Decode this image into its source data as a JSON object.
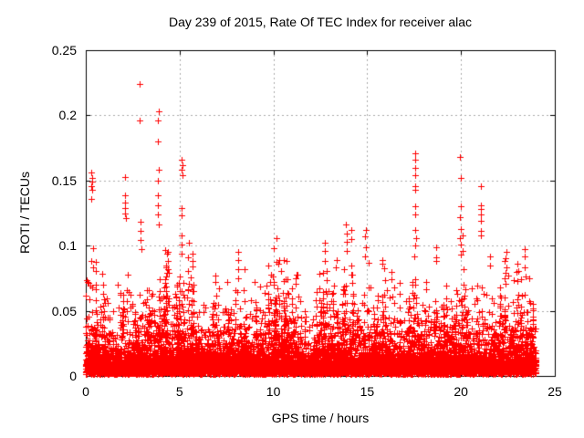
{
  "chart_data": {
    "type": "scatter",
    "title": "Day 239 of 2015, Rate Of TEC Index for receiver alac",
    "xlabel": "GPS time / hours",
    "ylabel": "ROTI / TECUs",
    "xlim": [
      0,
      25
    ],
    "ylim": [
      0,
      0.25
    ],
    "xticks": {
      "values": [
        0,
        5,
        10,
        15,
        20,
        25
      ],
      "labels": [
        "0",
        "5",
        "10",
        "15",
        "20",
        "25"
      ]
    },
    "yticks": {
      "values": [
        0,
        0.05,
        0.1,
        0.15,
        0.2,
        0.25
      ],
      "labels": [
        "0",
        "0.05",
        "0.1",
        "0.15",
        "0.2",
        "0.25"
      ]
    },
    "grid": {
      "show": true,
      "color": "#aaaaaa",
      "dash": [
        2,
        3
      ],
      "x_at": [
        5,
        10,
        15,
        20
      ],
      "y_at": [
        0.05,
        0.1,
        0.15,
        0.2
      ]
    },
    "axis_color": "#000000",
    "text_color": "#000000",
    "marker": {
      "shape": "plus",
      "color": "#ff0000",
      "size": 7
    },
    "data_hours": [
      0,
      24
    ],
    "legend": "none",
    "generator": {
      "seed": 239,
      "n_points": 7200,
      "n_floor_points": 2600,
      "floor_max": 0.011,
      "y_offset": 0.0015,
      "mean_factor": 0.22,
      "clamp_factor": 1.3,
      "n_clusters": 130,
      "cluster_min_top": 0.045,
      "envelope": [
        [
          0.0,
          0.06
        ],
        [
          0.4,
          0.068
        ],
        [
          1.0,
          0.052
        ],
        [
          1.6,
          0.042
        ],
        [
          2.0,
          0.058
        ],
        [
          2.6,
          0.05
        ],
        [
          3.0,
          0.06
        ],
        [
          3.6,
          0.056
        ],
        [
          4.2,
          0.062
        ],
        [
          4.7,
          0.052
        ],
        [
          5.2,
          0.068
        ],
        [
          5.7,
          0.062
        ],
        [
          6.2,
          0.048
        ],
        [
          6.8,
          0.044
        ],
        [
          7.4,
          0.055
        ],
        [
          8.0,
          0.062
        ],
        [
          8.6,
          0.05
        ],
        [
          9.2,
          0.046
        ],
        [
          9.8,
          0.065
        ],
        [
          10.3,
          0.068
        ],
        [
          10.8,
          0.055
        ],
        [
          11.3,
          0.048
        ],
        [
          11.8,
          0.032
        ],
        [
          12.3,
          0.05
        ],
        [
          12.8,
          0.058
        ],
        [
          13.4,
          0.052
        ],
        [
          14.0,
          0.06
        ],
        [
          14.6,
          0.04
        ],
        [
          15.0,
          0.055
        ],
        [
          15.5,
          0.062
        ],
        [
          16.0,
          0.052
        ],
        [
          16.6,
          0.044
        ],
        [
          17.2,
          0.055
        ],
        [
          17.7,
          0.062
        ],
        [
          18.2,
          0.055
        ],
        [
          18.8,
          0.046
        ],
        [
          19.4,
          0.048
        ],
        [
          20.0,
          0.058
        ],
        [
          20.6,
          0.052
        ],
        [
          21.1,
          0.06
        ],
        [
          21.6,
          0.046
        ],
        [
          22.1,
          0.052
        ],
        [
          22.6,
          0.062
        ],
        [
          23.1,
          0.055
        ],
        [
          23.6,
          0.06
        ],
        [
          24.0,
          0.045
        ]
      ]
    },
    "spike_columns": [
      {
        "hour": 0.3,
        "values": [
          0.156,
          0.152,
          0.149,
          0.146,
          0.143,
          0.136,
          0.088
        ]
      },
      {
        "hour": 2.1,
        "values": [
          0.153,
          0.139,
          0.133,
          0.129,
          0.125,
          0.121
        ]
      },
      {
        "hour": 2.84,
        "values": [
          0.224,
          0.196
        ]
      },
      {
        "hour": 2.95,
        "values": [
          0.118,
          0.111,
          0.104,
          0.097
        ]
      },
      {
        "hour": 3.86,
        "values": [
          0.203,
          0.196,
          0.18,
          0.158,
          0.15,
          0.139,
          0.131,
          0.124,
          0.116
        ]
      },
      {
        "hour": 4.35,
        "values": [
          0.095,
          0.088,
          0.079
        ]
      },
      {
        "hour": 5.12,
        "values": [
          0.166,
          0.162,
          0.158,
          0.154,
          0.129,
          0.123,
          0.108,
          0.101,
          0.094
        ]
      },
      {
        "hour": 5.67,
        "values": [
          0.094,
          0.088,
          0.084
        ]
      },
      {
        "hour": 6.9,
        "values": [
          0.077,
          0.072
        ]
      },
      {
        "hour": 8.1,
        "values": [
          0.095,
          0.089,
          0.082,
          0.075
        ]
      },
      {
        "hour": 9.0,
        "values": [
          0.072
        ]
      },
      {
        "hour": 10.0,
        "values": [
          0.098,
          0.076,
          0.072,
          0.07
        ]
      },
      {
        "hour": 11.2,
        "values": [
          0.078,
          0.075,
          0.071
        ]
      },
      {
        "hour": 12.75,
        "values": [
          0.102,
          0.096,
          0.088
        ]
      },
      {
        "hour": 13.35,
        "values": [
          0.089,
          0.083
        ]
      },
      {
        "hour": 13.9,
        "values": [
          0.116,
          0.109,
          0.103,
          0.096
        ]
      },
      {
        "hour": 14.15,
        "values": [
          0.112,
          0.105,
          0.085,
          0.078
        ]
      },
      {
        "hour": 14.9,
        "values": [
          0.112,
          0.107,
          0.099,
          0.092
        ]
      },
      {
        "hour": 15.8,
        "values": [
          0.089,
          0.086
        ]
      },
      {
        "hour": 16.3,
        "values": [
          0.08,
          0.074
        ]
      },
      {
        "hour": 17.56,
        "values": [
          0.171,
          0.166,
          0.16,
          0.154,
          0.146,
          0.143,
          0.13,
          0.124,
          0.112,
          0.106,
          0.1
        ]
      },
      {
        "hour": 18.7,
        "values": [
          0.099,
          0.091,
          0.088
        ]
      },
      {
        "hour": 19.97,
        "values": [
          0.168,
          0.152,
          0.13,
          0.122,
          0.113,
          0.106,
          0.101,
          0.093
        ]
      },
      {
        "hour": 20.1,
        "values": [
          0.108,
          0.096
        ]
      },
      {
        "hour": 21.05,
        "values": [
          0.146,
          0.131,
          0.128,
          0.124,
          0.119,
          0.111,
          0.108
        ]
      },
      {
        "hour": 21.55,
        "values": [
          0.092,
          0.085
        ]
      },
      {
        "hour": 22.4,
        "values": [
          0.095,
          0.09,
          0.083,
          0.079,
          0.071
        ]
      },
      {
        "hour": 23.0,
        "values": [
          0.086,
          0.08
        ]
      },
      {
        "hour": 23.4,
        "values": [
          0.097,
          0.092,
          0.083,
          0.076
        ]
      }
    ]
  }
}
